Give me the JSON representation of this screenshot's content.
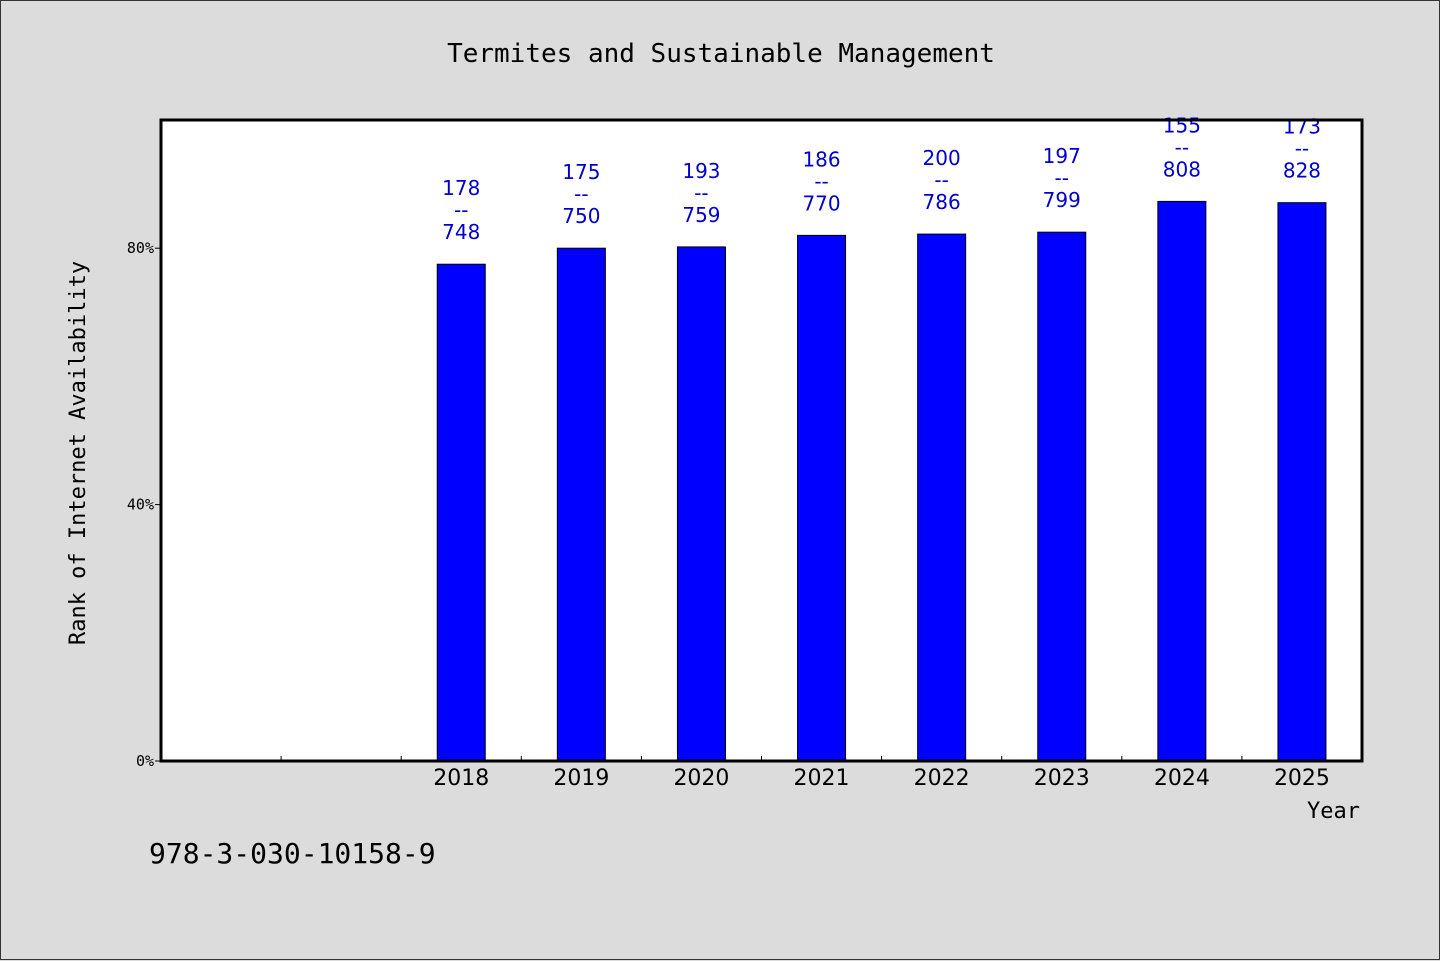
{
  "chart_data": {
    "type": "bar",
    "title": "Termites and Sustainable Management",
    "xlabel": "Year",
    "ylabel": "Rank of Internet Availability",
    "categories": [
      "",
      "",
      "2018",
      "2019",
      "2020",
      "2021",
      "2022",
      "2023",
      "2024",
      "2025"
    ],
    "values": [
      null,
      null,
      77.5,
      80.0,
      80.2,
      82.0,
      82.2,
      82.5,
      87.3,
      87.1
    ],
    "data_labels": [
      null,
      null,
      [
        "178",
        "--",
        "748"
      ],
      [
        "175",
        "--",
        "750"
      ],
      [
        "193",
        "--",
        "759"
      ],
      [
        "186",
        "--",
        "770"
      ],
      [
        "200",
        "--",
        "786"
      ],
      [
        "197",
        "--",
        "799"
      ],
      [
        "155",
        "--",
        "808"
      ],
      [
        "173",
        "--",
        "828"
      ]
    ],
    "yticks": [
      0,
      40,
      80
    ],
    "ytick_labels": [
      "0%",
      "40%",
      "80%"
    ],
    "ylim": [
      0,
      100
    ],
    "bar_color": "#0000ff",
    "label_color": "#0000cc",
    "grid": false,
    "legend": "none"
  },
  "footnote": "978-3-030-10158-9",
  "colors": {
    "background": "#dcdcdc",
    "plot_background": "#ffffff"
  }
}
